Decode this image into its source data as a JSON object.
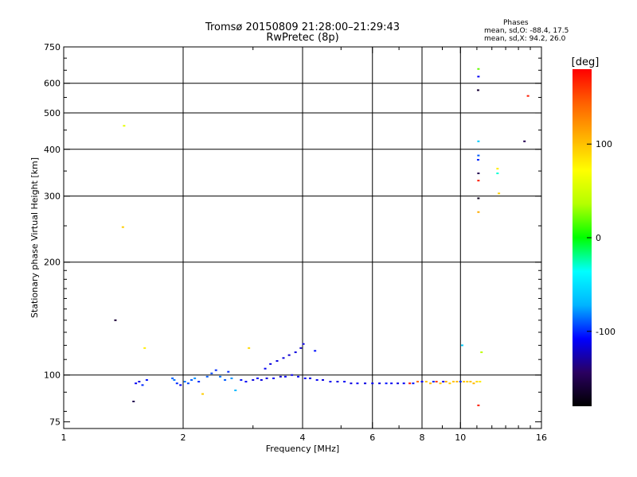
{
  "header": {
    "title_line1": "Tromsø 20150809 21:28:00–21:29:43",
    "title_line2": "RwPretec (8p)"
  },
  "stats": {
    "heading": "Phases",
    "o_line": "mean, sd,O: -88.4, 17.5",
    "x_line": "mean, sd,X:  94.2, 26.0"
  },
  "colorbar": {
    "label": "[deg]",
    "ticks": [
      {
        "value": 100,
        "label": "100"
      },
      {
        "value": 0,
        "label": "0"
      },
      {
        "value": -100,
        "label": "-100"
      }
    ],
    "range": [
      -180,
      180
    ],
    "colors": [
      "#000000",
      "#2a0060",
      "#0000ff",
      "#00b4ff",
      "#00ffff",
      "#00ff00",
      "#b4ff00",
      "#ffff00",
      "#ffb000",
      "#ff6000",
      "#ff0000"
    ]
  },
  "chart_data": {
    "type": "scatter",
    "title": "Tromsø 20150809 21:28:00–21:29:43",
    "subtitle": "RwPretec (8p)",
    "xlabel": "Frequency [MHz]",
    "ylabel": "Stationary phase Virtual Height [km]",
    "xscale": "log",
    "yscale": "log",
    "xlim": [
      1,
      16
    ],
    "ylim": [
      72,
      750
    ],
    "xticks": [
      {
        "value": 1,
        "label": "1"
      },
      {
        "value": 2,
        "label": "2"
      },
      {
        "value": 4,
        "label": "4"
      },
      {
        "value": 6,
        "label": "6"
      },
      {
        "value": 8,
        "label": "8"
      },
      {
        "value": 10,
        "label": "10"
      },
      {
        "value": 16,
        "label": "16"
      }
    ],
    "xgrid": [
      2,
      4,
      6,
      8,
      10
    ],
    "xminor": [
      3,
      5,
      7,
      9,
      11,
      12,
      13,
      14,
      15
    ],
    "yticks": [
      {
        "value": 75,
        "label": "75"
      },
      {
        "value": 100,
        "label": "100"
      },
      {
        "value": 200,
        "label": "200"
      },
      {
        "value": 300,
        "label": "300"
      },
      {
        "value": 400,
        "label": "400"
      },
      {
        "value": 500,
        "label": "500"
      },
      {
        "value": 600,
        "label": "600"
      },
      {
        "value": 750,
        "label": "750"
      }
    ],
    "ygrid": [
      100,
      200,
      300,
      400,
      500,
      600
    ],
    "grid": true,
    "points": [
      {
        "f": 1.42,
        "h": 462,
        "phase": 60
      },
      {
        "f": 1.41,
        "h": 248,
        "phase": 95
      },
      {
        "f": 1.35,
        "h": 140,
        "phase": -160
      },
      {
        "f": 1.6,
        "h": 118,
        "phase": 80
      },
      {
        "f": 1.5,
        "h": 85,
        "phase": -150
      },
      {
        "f": 1.52,
        "h": 95,
        "phase": -110
      },
      {
        "f": 1.55,
        "h": 96,
        "phase": -115
      },
      {
        "f": 1.58,
        "h": 94,
        "phase": -100
      },
      {
        "f": 1.62,
        "h": 97,
        "phase": -105
      },
      {
        "f": 1.88,
        "h": 98,
        "phase": -90
      },
      {
        "f": 1.9,
        "h": 97,
        "phase": -85
      },
      {
        "f": 1.93,
        "h": 95,
        "phase": -100
      },
      {
        "f": 1.97,
        "h": 94,
        "phase": -110
      },
      {
        "f": 2.02,
        "h": 96,
        "phase": -85
      },
      {
        "f": 2.06,
        "h": 95,
        "phase": -95
      },
      {
        "f": 2.1,
        "h": 97,
        "phase": -90
      },
      {
        "f": 2.14,
        "h": 98,
        "phase": -80
      },
      {
        "f": 2.19,
        "h": 96,
        "phase": -100
      },
      {
        "f": 2.24,
        "h": 89,
        "phase": 95
      },
      {
        "f": 2.3,
        "h": 99,
        "phase": -90
      },
      {
        "f": 2.36,
        "h": 101,
        "phase": -95
      },
      {
        "f": 2.42,
        "h": 103,
        "phase": -100
      },
      {
        "f": 2.48,
        "h": 99,
        "phase": -85
      },
      {
        "f": 2.55,
        "h": 97,
        "phase": -90
      },
      {
        "f": 2.6,
        "h": 102,
        "phase": -100
      },
      {
        "f": 2.65,
        "h": 98,
        "phase": -80
      },
      {
        "f": 2.71,
        "h": 91,
        "phase": -70
      },
      {
        "f": 2.8,
        "h": 97,
        "phase": -105
      },
      {
        "f": 2.88,
        "h": 96,
        "phase": -110
      },
      {
        "f": 2.93,
        "h": 118,
        "phase": 90
      },
      {
        "f": 3.0,
        "h": 97,
        "phase": -115
      },
      {
        "f": 3.08,
        "h": 98,
        "phase": -110
      },
      {
        "f": 3.15,
        "h": 97,
        "phase": -115
      },
      {
        "f": 3.22,
        "h": 104,
        "phase": -110
      },
      {
        "f": 3.25,
        "h": 98,
        "phase": -115
      },
      {
        "f": 3.32,
        "h": 107,
        "phase": -115
      },
      {
        "f": 3.38,
        "h": 98,
        "phase": -110
      },
      {
        "f": 3.45,
        "h": 109,
        "phase": -115
      },
      {
        "f": 3.52,
        "h": 99,
        "phase": -120
      },
      {
        "f": 3.58,
        "h": 111,
        "phase": -115
      },
      {
        "f": 3.62,
        "h": 99,
        "phase": -110
      },
      {
        "f": 3.7,
        "h": 113,
        "phase": -120
      },
      {
        "f": 3.76,
        "h": 100,
        "phase": -115
      },
      {
        "f": 3.84,
        "h": 115,
        "phase": -115
      },
      {
        "f": 3.9,
        "h": 99,
        "phase": -110
      },
      {
        "f": 3.96,
        "h": 118,
        "phase": -120
      },
      {
        "f": 4.02,
        "h": 121,
        "phase": -115
      },
      {
        "f": 4.06,
        "h": 98,
        "phase": -110
      },
      {
        "f": 4.18,
        "h": 98,
        "phase": -115
      },
      {
        "f": 4.3,
        "h": 116,
        "phase": -105
      },
      {
        "f": 4.35,
        "h": 97,
        "phase": -110
      },
      {
        "f": 4.5,
        "h": 97,
        "phase": -115
      },
      {
        "f": 4.7,
        "h": 96,
        "phase": -110
      },
      {
        "f": 4.9,
        "h": 96,
        "phase": -115
      },
      {
        "f": 5.1,
        "h": 96,
        "phase": -110
      },
      {
        "f": 5.3,
        "h": 95,
        "phase": -115
      },
      {
        "f": 5.5,
        "h": 95,
        "phase": -110
      },
      {
        "f": 5.75,
        "h": 95,
        "phase": -115
      },
      {
        "f": 6.0,
        "h": 95,
        "phase": -110
      },
      {
        "f": 6.25,
        "h": 95,
        "phase": -115
      },
      {
        "f": 6.5,
        "h": 95,
        "phase": -105
      },
      {
        "f": 6.7,
        "h": 95,
        "phase": -110
      },
      {
        "f": 6.95,
        "h": 95,
        "phase": -115
      },
      {
        "f": 7.2,
        "h": 95,
        "phase": -110
      },
      {
        "f": 7.45,
        "h": 95,
        "phase": 170
      },
      {
        "f": 7.6,
        "h": 95,
        "phase": -105
      },
      {
        "f": 7.8,
        "h": 96,
        "phase": 140
      },
      {
        "f": 8.0,
        "h": 96,
        "phase": -110
      },
      {
        "f": 8.2,
        "h": 96,
        "phase": 100
      },
      {
        "f": 8.4,
        "h": 95,
        "phase": 105
      },
      {
        "f": 8.55,
        "h": 96,
        "phase": -100
      },
      {
        "f": 8.7,
        "h": 96,
        "phase": 160
      },
      {
        "f": 8.9,
        "h": 95,
        "phase": 100
      },
      {
        "f": 9.05,
        "h": 96,
        "phase": -110
      },
      {
        "f": 9.2,
        "h": 96,
        "phase": 110
      },
      {
        "f": 9.4,
        "h": 95,
        "phase": 95
      },
      {
        "f": 9.6,
        "h": 96,
        "phase": 100
      },
      {
        "f": 9.8,
        "h": 96,
        "phase": 105
      },
      {
        "f": 10.0,
        "h": 96,
        "phase": -100
      },
      {
        "f": 10.2,
        "h": 96,
        "phase": 100
      },
      {
        "f": 10.4,
        "h": 96,
        "phase": 95
      },
      {
        "f": 10.6,
        "h": 96,
        "phase": 100
      },
      {
        "f": 10.8,
        "h": 95,
        "phase": 105
      },
      {
        "f": 11.0,
        "h": 96,
        "phase": 90
      },
      {
        "f": 11.2,
        "h": 96,
        "phase": 80
      },
      {
        "f": 10.1,
        "h": 120,
        "phase": -60
      },
      {
        "f": 11.3,
        "h": 115,
        "phase": 40
      },
      {
        "f": 11.1,
        "h": 83,
        "phase": 170
      },
      {
        "f": 11.1,
        "h": 655,
        "phase": 20
      },
      {
        "f": 11.1,
        "h": 625,
        "phase": -110
      },
      {
        "f": 11.08,
        "h": 575,
        "phase": -160
      },
      {
        "f": 11.1,
        "h": 420,
        "phase": -60
      },
      {
        "f": 11.1,
        "h": 385,
        "phase": -90
      },
      {
        "f": 11.08,
        "h": 375,
        "phase": -100
      },
      {
        "f": 11.1,
        "h": 345,
        "phase": -150
      },
      {
        "f": 11.1,
        "h": 330,
        "phase": 170
      },
      {
        "f": 11.1,
        "h": 296,
        "phase": -170
      },
      {
        "f": 11.1,
        "h": 272,
        "phase": 110
      },
      {
        "f": 12.4,
        "h": 355,
        "phase": 80
      },
      {
        "f": 12.5,
        "h": 305,
        "phase": 95
      },
      {
        "f": 12.4,
        "h": 345,
        "phase": -30
      },
      {
        "f": 14.5,
        "h": 420,
        "phase": -150
      },
      {
        "f": 14.8,
        "h": 555,
        "phase": 170
      }
    ]
  }
}
